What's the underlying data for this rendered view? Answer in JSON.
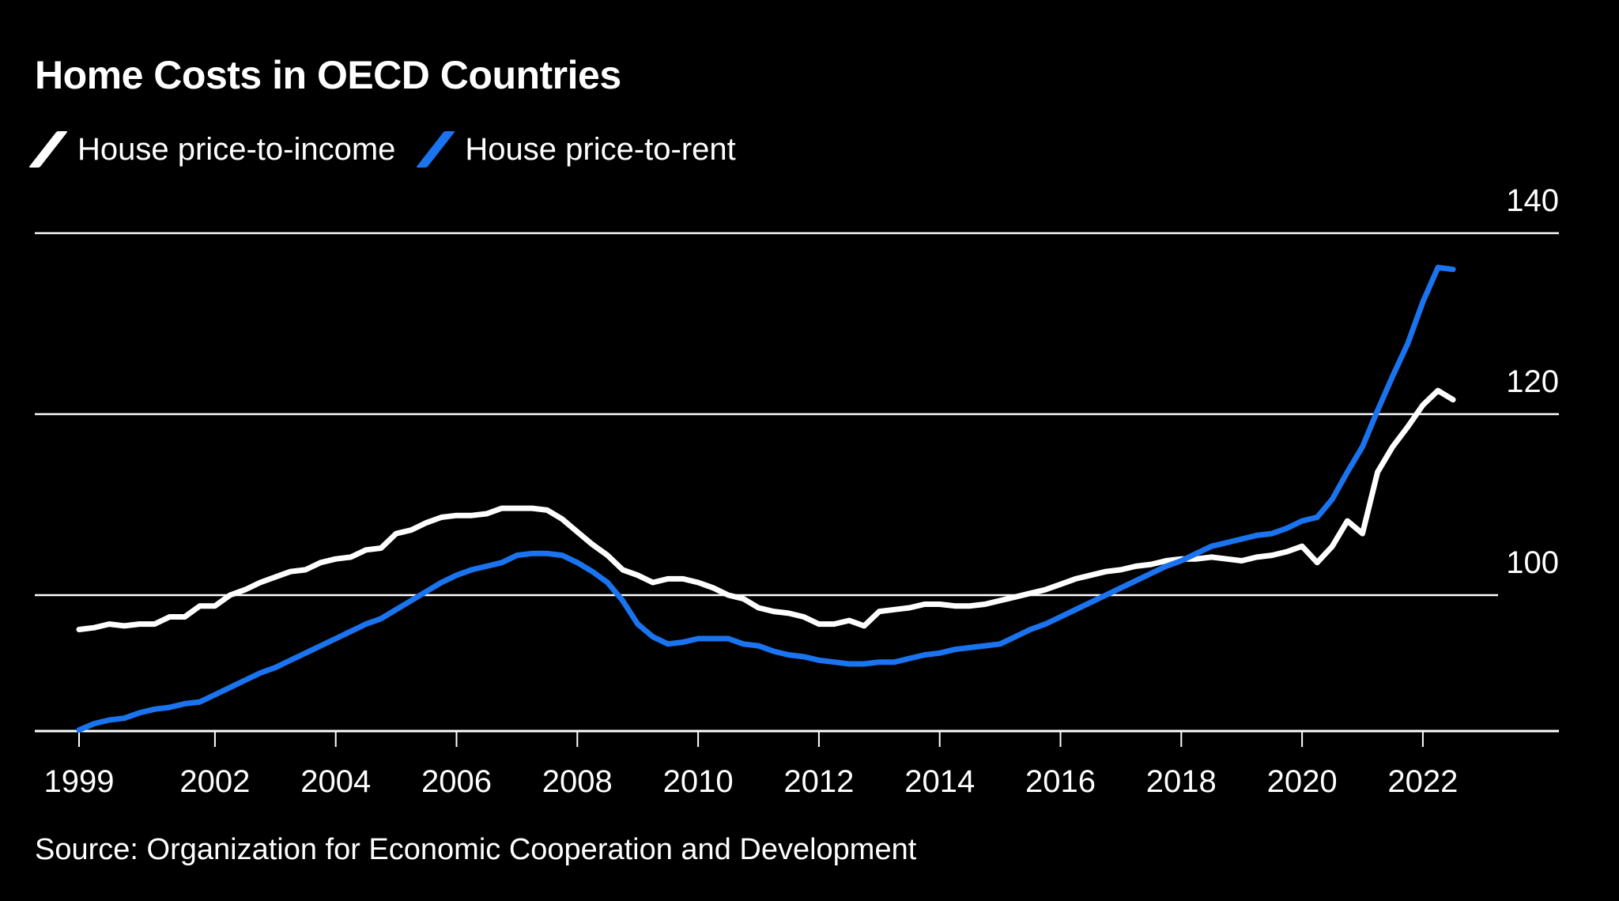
{
  "chart_data": {
    "type": "line",
    "title": "Home Costs in OECD Countries",
    "source": "Source: Organization for Economic Cooperation and Development",
    "xlabel": "",
    "ylabel": "",
    "x_tick_labels": [
      "1999",
      "2002",
      "2004",
      "2006",
      "2008",
      "2010",
      "2012",
      "2014",
      "2016",
      "2018",
      "2020",
      "2022"
    ],
    "x_ticks": [
      1999.75,
      2002,
      2004,
      2006,
      2008,
      2010,
      2012,
      2014,
      2016,
      2018,
      2020,
      2022
    ],
    "y_ticks": [
      100,
      120,
      140
    ],
    "y_tick_labels": [
      "100",
      "120",
      "140"
    ],
    "ylim": [
      85,
      143
    ],
    "xlim": [
      1999.0,
      2024.3
    ],
    "grid": true,
    "legend_position": "top-left",
    "x": [
      1999.75,
      2000,
      2000.25,
      2000.5,
      2000.75,
      2001,
      2001.25,
      2001.5,
      2001.75,
      2002,
      2002.25,
      2002.5,
      2002.75,
      2003,
      2003.25,
      2003.5,
      2003.75,
      2004,
      2004.25,
      2004.5,
      2004.75,
      2005,
      2005.25,
      2005.5,
      2005.75,
      2006,
      2006.25,
      2006.5,
      2006.75,
      2007,
      2007.25,
      2007.5,
      2007.75,
      2008,
      2008.25,
      2008.5,
      2008.75,
      2009,
      2009.25,
      2009.5,
      2009.75,
      2010,
      2010.25,
      2010.5,
      2010.75,
      2011,
      2011.25,
      2011.5,
      2011.75,
      2012,
      2012.25,
      2012.5,
      2012.75,
      2013,
      2013.25,
      2013.5,
      2013.75,
      2014,
      2014.25,
      2014.5,
      2014.75,
      2015,
      2015.25,
      2015.5,
      2015.75,
      2016,
      2016.25,
      2016.5,
      2016.75,
      2017,
      2017.25,
      2017.5,
      2017.75,
      2018,
      2018.25,
      2018.5,
      2018.75,
      2019,
      2019.25,
      2019.5,
      2019.75,
      2020,
      2020.25,
      2020.5,
      2020.75,
      2021,
      2021.25,
      2021.5,
      2021.75,
      2022,
      2022.25,
      2022.5
    ],
    "series": [
      {
        "name": "House price-to-income",
        "color": "#ffffff",
        "values": [
          96.2,
          96.4,
          96.8,
          96.6,
          96.8,
          96.8,
          97.6,
          97.6,
          98.8,
          98.8,
          100.0,
          100.6,
          101.4,
          102.0,
          102.6,
          102.8,
          103.6,
          104.0,
          104.2,
          105.0,
          105.2,
          106.8,
          107.2,
          108.0,
          108.6,
          108.8,
          108.8,
          109.0,
          109.6,
          109.6,
          109.6,
          109.4,
          108.4,
          107.0,
          105.6,
          104.4,
          102.8,
          102.2,
          101.4,
          101.8,
          101.8,
          101.4,
          100.8,
          100.0,
          99.6,
          98.6,
          98.2,
          98.0,
          97.6,
          96.8,
          96.8,
          97.2,
          96.6,
          98.2,
          98.4,
          98.6,
          99.0,
          99.0,
          98.8,
          98.8,
          99.0,
          99.4,
          99.8,
          100.2,
          100.6,
          101.2,
          101.8,
          102.2,
          102.6,
          102.8,
          103.2,
          103.4,
          103.8,
          104.0,
          104.0,
          104.2,
          104.0,
          103.8,
          104.2,
          104.4,
          104.8,
          105.4,
          103.6,
          105.4,
          108.2,
          106.8,
          113.6,
          116.4,
          118.6,
          121.0,
          122.6,
          121.6
        ]
      },
      {
        "name": "House price-to-rent",
        "color": "#1a74f0",
        "values": [
          85.1,
          85.8,
          86.2,
          86.4,
          87.0,
          87.4,
          87.6,
          88.0,
          88.2,
          89.0,
          89.8,
          90.6,
          91.4,
          92.0,
          92.8,
          93.6,
          94.4,
          95.2,
          96.0,
          96.8,
          97.4,
          98.4,
          99.4,
          100.4,
          101.4,
          102.2,
          102.8,
          103.2,
          103.6,
          104.4,
          104.6,
          104.6,
          104.4,
          103.6,
          102.6,
          101.4,
          99.4,
          96.8,
          95.4,
          94.6,
          94.8,
          95.2,
          95.2,
          95.2,
          94.6,
          94.4,
          93.8,
          93.4,
          93.2,
          92.8,
          92.6,
          92.4,
          92.4,
          92.6,
          92.6,
          93.0,
          93.4,
          93.6,
          94.0,
          94.2,
          94.4,
          94.6,
          95.4,
          96.2,
          96.8,
          97.6,
          98.4,
          99.2,
          100.0,
          100.8,
          101.6,
          102.4,
          103.2,
          103.8,
          104.6,
          105.4,
          105.8,
          106.2,
          106.6,
          106.8,
          107.4,
          108.2,
          108.6,
          110.6,
          113.6,
          116.4,
          120.4,
          124.2,
          127.8,
          132.4,
          136.2,
          136.0
        ]
      }
    ]
  }
}
